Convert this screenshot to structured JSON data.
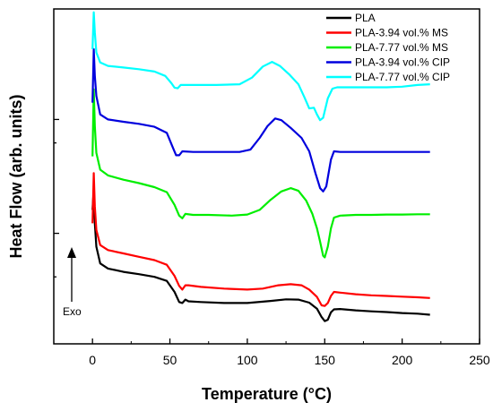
{
  "chart_data": {
    "type": "line",
    "title": "",
    "xlabel": "Temperature (°C)",
    "ylabel": "Heat Flow (arb. units)",
    "xlim": [
      -25,
      250
    ],
    "xticks": [
      0,
      50,
      100,
      150,
      200,
      250
    ],
    "ylim": [
      0,
      100
    ],
    "yticks_labeled": false,
    "grid": false,
    "legend": "top-right",
    "annotation": {
      "text": "Exo",
      "arrow": "up"
    },
    "series": [
      {
        "name": "PLA",
        "color": "#000000",
        "points": [
          [
            0,
            40
          ],
          [
            0.8,
            46
          ],
          [
            1.5,
            36
          ],
          [
            2.5,
            29
          ],
          [
            5,
            24
          ],
          [
            10,
            22.5
          ],
          [
            20,
            21.5
          ],
          [
            30,
            20.8
          ],
          [
            40,
            20
          ],
          [
            48,
            18.8
          ],
          [
            53,
            15.5
          ],
          [
            56,
            12.5
          ],
          [
            58,
            12.2
          ],
          [
            60,
            13.2
          ],
          [
            62,
            12.7
          ],
          [
            70,
            12.5
          ],
          [
            85,
            12.2
          ],
          [
            100,
            12.2
          ],
          [
            115,
            12.8
          ],
          [
            125,
            13.3
          ],
          [
            133,
            13.2
          ],
          [
            140,
            12.3
          ],
          [
            145,
            10.5
          ],
          [
            148,
            8
          ],
          [
            150,
            6.8
          ],
          [
            152,
            7.2
          ],
          [
            154,
            9.4
          ],
          [
            156,
            10.3
          ],
          [
            160,
            10.4
          ],
          [
            170,
            10
          ],
          [
            180,
            9.7
          ],
          [
            190,
            9.5
          ],
          [
            200,
            9.2
          ],
          [
            210,
            9
          ],
          [
            218,
            8.7
          ]
        ]
      },
      {
        "name": "PLA-3.94 vol.% MS",
        "color": "#ff0000",
        "points": [
          [
            0,
            36
          ],
          [
            0.8,
            51
          ],
          [
            1.5,
            41
          ],
          [
            2.5,
            34
          ],
          [
            5,
            29.5
          ],
          [
            10,
            28
          ],
          [
            20,
            27
          ],
          [
            30,
            26
          ],
          [
            40,
            25
          ],
          [
            48,
            23.6
          ],
          [
            53,
            20.3
          ],
          [
            56,
            17.3
          ],
          [
            58,
            16.2
          ],
          [
            60,
            17.5
          ],
          [
            62,
            17.5
          ],
          [
            70,
            17
          ],
          [
            85,
            16.5
          ],
          [
            100,
            16.2
          ],
          [
            110,
            16.5
          ],
          [
            120,
            17.5
          ],
          [
            128,
            17.8
          ],
          [
            135,
            17.5
          ],
          [
            140,
            16.2
          ],
          [
            145,
            14
          ],
          [
            148,
            11.5
          ],
          [
            150,
            11.3
          ],
          [
            152,
            12.2
          ],
          [
            154,
            14.3
          ],
          [
            156,
            15.5
          ],
          [
            160,
            15.3
          ],
          [
            170,
            14.8
          ],
          [
            180,
            14.5
          ],
          [
            190,
            14.3
          ],
          [
            200,
            14.1
          ],
          [
            210,
            13.9
          ],
          [
            218,
            13.7
          ]
        ]
      },
      {
        "name": "PLA-7.77 vol.% MS",
        "color": "#00ee00",
        "points": [
          [
            0,
            56
          ],
          [
            0.8,
            76
          ],
          [
            1.5,
            65
          ],
          [
            2.5,
            57
          ],
          [
            5,
            52
          ],
          [
            10,
            50.3
          ],
          [
            20,
            49
          ],
          [
            30,
            48
          ],
          [
            40,
            46.8
          ],
          [
            48,
            45.3
          ],
          [
            53,
            41.5
          ],
          [
            56,
            38.3
          ],
          [
            58,
            37.5
          ],
          [
            60,
            38.8
          ],
          [
            65,
            38.5
          ],
          [
            75,
            38.5
          ],
          [
            90,
            38.3
          ],
          [
            100,
            38.6
          ],
          [
            108,
            40
          ],
          [
            115,
            43
          ],
          [
            122,
            45.5
          ],
          [
            128,
            46.5
          ],
          [
            133,
            45.7
          ],
          [
            138,
            42.8
          ],
          [
            142,
            38.8
          ],
          [
            145,
            34.5
          ],
          [
            147,
            30.5
          ],
          [
            149,
            26.3
          ],
          [
            150,
            25.8
          ],
          [
            152,
            29
          ],
          [
            154,
            34.5
          ],
          [
            156,
            37.7
          ],
          [
            160,
            38.3
          ],
          [
            170,
            38.5
          ],
          [
            180,
            38.5
          ],
          [
            190,
            38.6
          ],
          [
            200,
            38.6
          ],
          [
            210,
            38.7
          ],
          [
            218,
            38.7
          ]
        ]
      },
      {
        "name": "PLA-3.94 vol.% CIP",
        "color": "#0000dd",
        "points": [
          [
            0,
            72
          ],
          [
            0.8,
            88
          ],
          [
            1.5,
            80
          ],
          [
            2.5,
            74
          ],
          [
            5,
            68.5
          ],
          [
            10,
            67
          ],
          [
            20,
            66.3
          ],
          [
            30,
            65.7
          ],
          [
            40,
            64.8
          ],
          [
            48,
            63
          ],
          [
            52,
            58.5
          ],
          [
            54,
            56.3
          ],
          [
            56,
            56.3
          ],
          [
            58,
            57.5
          ],
          [
            65,
            57.3
          ],
          [
            80,
            57.3
          ],
          [
            95,
            57.3
          ],
          [
            102,
            58
          ],
          [
            108,
            61.5
          ],
          [
            113,
            65
          ],
          [
            118,
            67.3
          ],
          [
            122,
            66.8
          ],
          [
            128,
            64.5
          ],
          [
            135,
            61.5
          ],
          [
            140,
            57.5
          ],
          [
            144,
            51
          ],
          [
            147,
            46.5
          ],
          [
            149,
            45.5
          ],
          [
            151,
            47
          ],
          [
            154,
            55
          ],
          [
            156,
            57.5
          ],
          [
            160,
            57.3
          ],
          [
            170,
            57.3
          ],
          [
            180,
            57.3
          ],
          [
            190,
            57.3
          ],
          [
            200,
            57.3
          ],
          [
            210,
            57.3
          ],
          [
            218,
            57.3
          ]
        ]
      },
      {
        "name": "PLA-7.77 vol.% CIP",
        "color": "#00ffff",
        "points": [
          [
            0,
            88
          ],
          [
            0.8,
            99
          ],
          [
            1.5,
            93
          ],
          [
            2.5,
            87
          ],
          [
            5,
            84
          ],
          [
            10,
            83
          ],
          [
            20,
            82.5
          ],
          [
            30,
            82
          ],
          [
            40,
            81.3
          ],
          [
            47,
            80
          ],
          [
            51,
            77.8
          ],
          [
            53,
            76.5
          ],
          [
            55,
            76.3
          ],
          [
            57,
            77.3
          ],
          [
            65,
            77.3
          ],
          [
            80,
            77.3
          ],
          [
            95,
            77.5
          ],
          [
            103,
            79.5
          ],
          [
            110,
            82.8
          ],
          [
            116,
            84.2
          ],
          [
            121,
            83
          ],
          [
            127,
            80.5
          ],
          [
            133,
            77.5
          ],
          [
            137,
            73.5
          ],
          [
            140,
            70.3
          ],
          [
            143,
            70.5
          ],
          [
            145,
            68.5
          ],
          [
            147,
            66.8
          ],
          [
            149,
            67.5
          ],
          [
            152,
            73.3
          ],
          [
            155,
            76.2
          ],
          [
            158,
            76.6
          ],
          [
            165,
            76.6
          ],
          [
            180,
            76.6
          ],
          [
            190,
            76.6
          ],
          [
            200,
            76.8
          ],
          [
            210,
            77.3
          ],
          [
            218,
            77.5
          ]
        ]
      }
    ]
  }
}
